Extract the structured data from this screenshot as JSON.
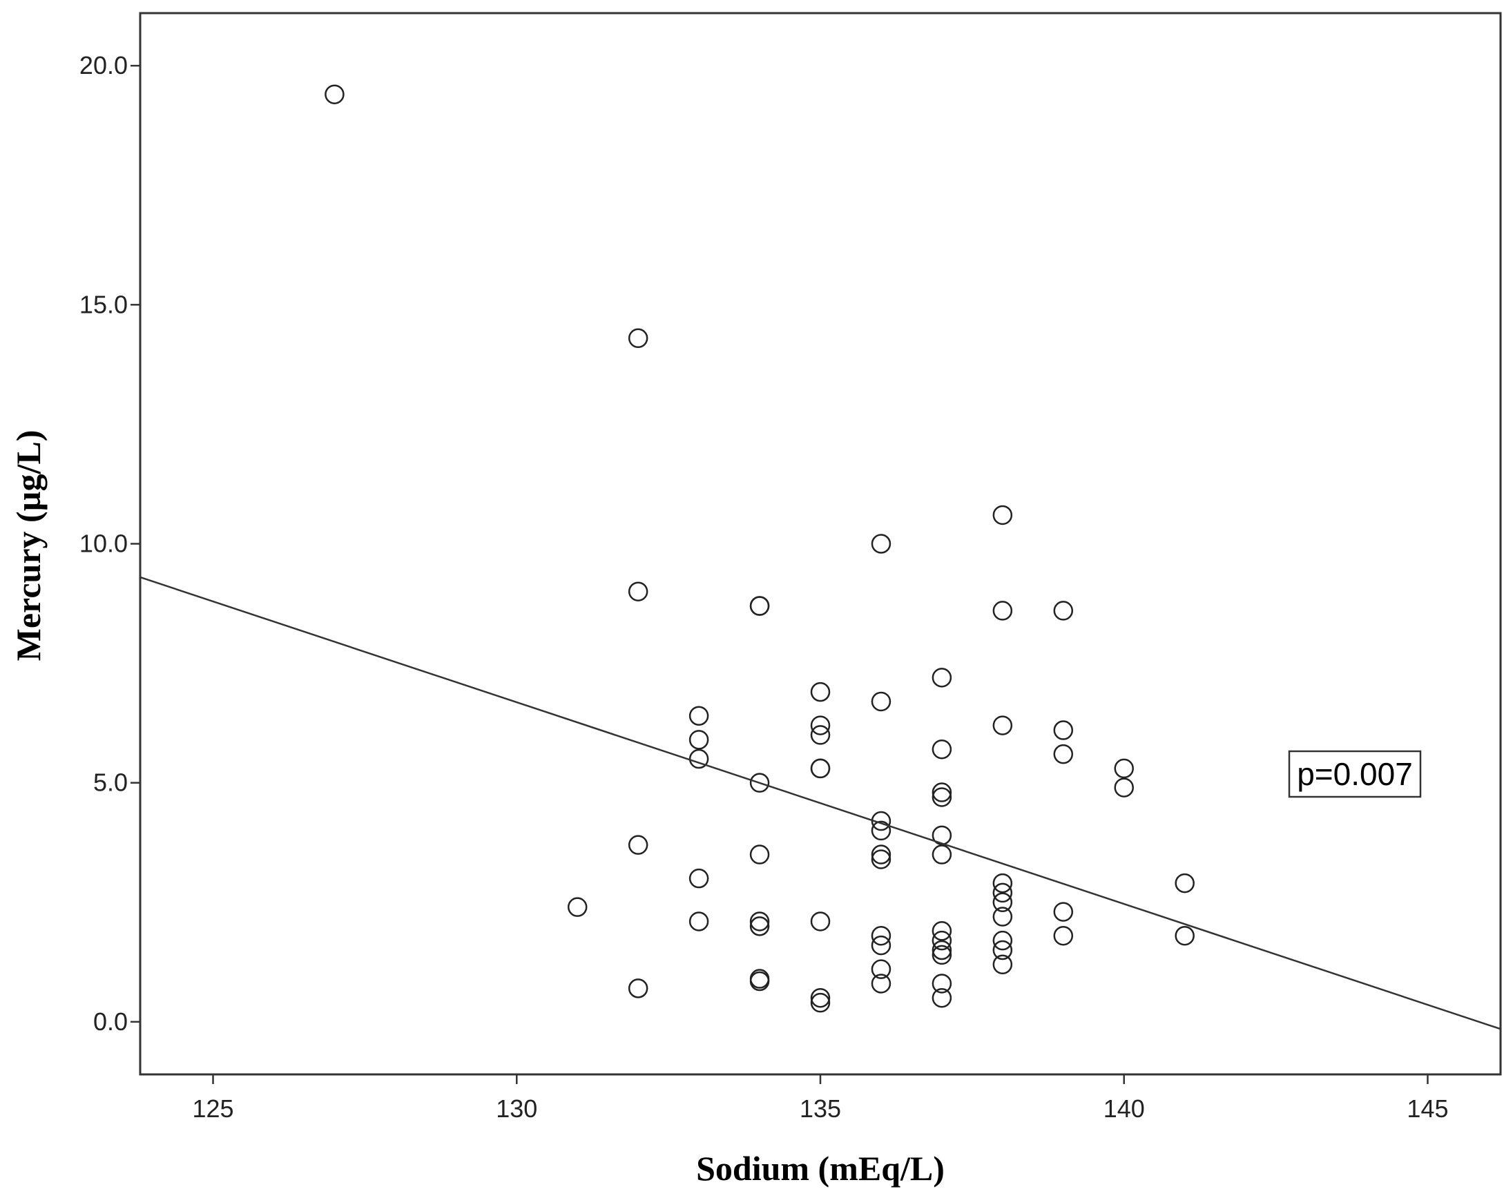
{
  "chart_data": {
    "type": "scatter",
    "title": "",
    "xlabel": "Sodium (mEq/L)",
    "ylabel": "Mercury (µg/L)",
    "xlim": [
      123.8,
      146.2
    ],
    "ylim": [
      -1.1,
      21.1
    ],
    "x_ticks": [
      125,
      130,
      135,
      140,
      145
    ],
    "x_tick_labels": [
      "125",
      "130",
      "135",
      "140",
      "145"
    ],
    "y_ticks": [
      0,
      5,
      10,
      15,
      20
    ],
    "y_tick_labels": [
      "0.0",
      "5.0",
      "10.0",
      "15.0",
      "20.0"
    ],
    "grid": false,
    "legend": "none",
    "annotation": "p=0.007",
    "series": [
      {
        "marker": "open-circle",
        "points": [
          [
            127,
            19.4
          ],
          [
            131,
            2.4
          ],
          [
            132,
            14.3
          ],
          [
            132,
            9.0
          ],
          [
            132,
            3.7
          ],
          [
            132,
            0.7
          ],
          [
            133,
            6.4
          ],
          [
            133,
            5.9
          ],
          [
            133,
            5.5
          ],
          [
            133,
            3.0
          ],
          [
            133,
            2.1
          ],
          [
            134,
            8.7
          ],
          [
            134,
            8.7
          ],
          [
            134,
            5.0
          ],
          [
            134,
            3.5
          ],
          [
            134,
            2.1
          ],
          [
            134,
            2.0
          ],
          [
            134,
            0.9
          ],
          [
            134,
            0.85
          ],
          [
            135,
            6.9
          ],
          [
            135,
            6.2
          ],
          [
            135,
            6.0
          ],
          [
            135,
            5.3
          ],
          [
            135,
            5.3
          ],
          [
            135,
            2.1
          ],
          [
            135,
            0.5
          ],
          [
            135,
            0.4
          ],
          [
            136,
            10.0
          ],
          [
            136,
            6.7
          ],
          [
            136,
            4.2
          ],
          [
            136,
            4.0
          ],
          [
            136,
            3.5
          ],
          [
            136,
            3.4
          ],
          [
            136,
            1.8
          ],
          [
            136,
            1.6
          ],
          [
            136,
            1.1
          ],
          [
            136,
            0.8
          ],
          [
            137,
            7.2
          ],
          [
            137,
            5.7
          ],
          [
            137,
            4.8
          ],
          [
            137,
            4.7
          ],
          [
            137,
            3.9
          ],
          [
            137,
            3.5
          ],
          [
            137,
            1.9
          ],
          [
            137,
            1.7
          ],
          [
            137,
            1.5
          ],
          [
            137,
            1.4
          ],
          [
            137,
            0.8
          ],
          [
            137,
            0.5
          ],
          [
            138,
            10.6
          ],
          [
            138,
            8.6
          ],
          [
            138,
            6.2
          ],
          [
            138,
            2.9
          ],
          [
            138,
            2.7
          ],
          [
            138,
            2.5
          ],
          [
            138,
            2.2
          ],
          [
            138,
            1.7
          ],
          [
            138,
            1.5
          ],
          [
            138,
            1.2
          ],
          [
            139,
            8.6
          ],
          [
            139,
            6.1
          ],
          [
            139,
            5.6
          ],
          [
            139,
            2.3
          ],
          [
            139,
            1.8
          ],
          [
            140,
            5.3
          ],
          [
            140,
            4.9
          ],
          [
            141,
            2.9
          ],
          [
            141,
            1.8
          ]
        ]
      }
    ],
    "fit_line": {
      "type": "linear",
      "points": [
        [
          123.8,
          9.3
        ],
        [
          146.2,
          -0.15
        ]
      ]
    }
  }
}
